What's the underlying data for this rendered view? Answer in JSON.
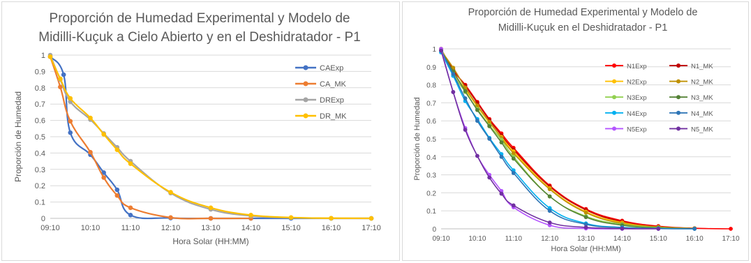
{
  "chart_data": [
    {
      "type": "line",
      "title_lines": [
        "Proporción de Humedad Experimental y Modelo de",
        "Midilli-Kuçuk a Cielo Abierto y en el Deshidratador - P1"
      ],
      "xlabel": "Hora Solar (HH:MM)",
      "ylabel": "Proporción de Humedad",
      "x_unit": "hours",
      "xlim": [
        9.1667,
        17.1667
      ],
      "ylim": [
        0,
        1
      ],
      "x_ticks": [
        {
          "value": 9.1667,
          "label": "09:10"
        },
        {
          "value": 10.1667,
          "label": "10:10"
        },
        {
          "value": 11.1667,
          "label": "11:10"
        },
        {
          "value": 12.1667,
          "label": "12:10"
        },
        {
          "value": 13.1667,
          "label": "13:10"
        },
        {
          "value": 14.1667,
          "label": "14:10"
        },
        {
          "value": 15.1667,
          "label": "15:10"
        },
        {
          "value": 16.1667,
          "label": "16:10"
        },
        {
          "value": 17.1667,
          "label": "17:10"
        }
      ],
      "y_ticks": [
        {
          "value": 0,
          "label": "0"
        },
        {
          "value": 0.1,
          "label": "0.1"
        },
        {
          "value": 0.2,
          "label": "0.2"
        },
        {
          "value": 0.3,
          "label": "0.3"
        },
        {
          "value": 0.4,
          "label": "0.4"
        },
        {
          "value": 0.5,
          "label": "0.5"
        },
        {
          "value": 0.6,
          "label": "0.6"
        },
        {
          "value": 0.7,
          "label": "0.7"
        },
        {
          "value": 0.8,
          "label": "0.8"
        },
        {
          "value": 0.9,
          "label": "0.9"
        },
        {
          "value": 1,
          "label": "1"
        }
      ],
      "grid": "horizontal",
      "legend": "top-right",
      "series": [
        {
          "name": "CAExp",
          "color": "#4472C4",
          "x": [
            9.1667,
            9.5,
            9.6667,
            10.1667,
            10.5,
            10.8333,
            11.1667,
            12.1667,
            13.1667,
            14.1667,
            15.1667,
            16.1667,
            17.1667
          ],
          "y": [
            0.99,
            0.88,
            0.525,
            0.39,
            0.28,
            0.175,
            0.02,
            0.002,
            0.0,
            0.0,
            0.0,
            0.0,
            0.0
          ]
        },
        {
          "name": "CA_MK",
          "color": "#ED7D31",
          "x": [
            9.1667,
            9.4167,
            9.6667,
            10.1667,
            10.5,
            10.8333,
            11.1667,
            12.1667,
            13.1667,
            14.1667
          ],
          "y": [
            0.99,
            0.805,
            0.595,
            0.405,
            0.25,
            0.14,
            0.065,
            0.005,
            0.0,
            0.0
          ]
        },
        {
          "name": "DRExp",
          "color": "#A5A5A5",
          "x": [
            9.1667,
            9.4167,
            9.6667,
            10.1667,
            10.5,
            10.8333,
            11.1667,
            12.1667,
            13.1667,
            14.1667,
            15.1667,
            16.1667,
            17.1667
          ],
          "y": [
            1.0,
            0.85,
            0.715,
            0.605,
            0.52,
            0.435,
            0.35,
            0.155,
            0.055,
            0.015,
            0.004,
            0.0,
            0.0
          ]
        },
        {
          "name": "DR_MK",
          "color": "#FFC000",
          "x": [
            9.1667,
            9.4167,
            9.6667,
            10.1667,
            10.5,
            10.8333,
            11.1667,
            12.1667,
            13.1667,
            14.1667,
            15.1667,
            16.1667,
            17.1667
          ],
          "y": [
            0.99,
            0.855,
            0.735,
            0.615,
            0.515,
            0.42,
            0.335,
            0.16,
            0.065,
            0.02,
            0.005,
            0.001,
            0.0
          ]
        }
      ]
    },
    {
      "type": "line",
      "title_lines": [
        "Proporción de Humedad Experimental y Modelo de",
        "Midilli-Kuçuk en el Deshidratador - P1"
      ],
      "xlabel": "Hora Solar (HH:MM)",
      "ylabel": "Proporción de Humedad",
      "x_unit": "hours",
      "xlim": [
        9.1667,
        17.1667
      ],
      "ylim": [
        0,
        1
      ],
      "x_ticks": [
        {
          "value": 9.1667,
          "label": "09:10"
        },
        {
          "value": 10.1667,
          "label": "10:10"
        },
        {
          "value": 11.1667,
          "label": "11:10"
        },
        {
          "value": 12.1667,
          "label": "12:10"
        },
        {
          "value": 13.1667,
          "label": "13:10"
        },
        {
          "value": 14.1667,
          "label": "14:10"
        },
        {
          "value": 15.1667,
          "label": "15:10"
        },
        {
          "value": 16.1667,
          "label": "16:10"
        },
        {
          "value": 17.1667,
          "label": "17:10"
        }
      ],
      "y_ticks": [
        {
          "value": 0,
          "label": "0"
        },
        {
          "value": 0.1,
          "label": "0.1"
        },
        {
          "value": 0.2,
          "label": "0.2"
        },
        {
          "value": 0.3,
          "label": "0.3"
        },
        {
          "value": 0.4,
          "label": "0.4"
        },
        {
          "value": 0.5,
          "label": "0.5"
        },
        {
          "value": 0.6,
          "label": "0.6"
        },
        {
          "value": 0.7,
          "label": "0.7"
        },
        {
          "value": 0.8,
          "label": "0.8"
        },
        {
          "value": 0.9,
          "label": "0.9"
        },
        {
          "value": 1,
          "label": "1"
        }
      ],
      "grid": "horizontal",
      "legend": "top-right",
      "series": [
        {
          "name": "N1Exp",
          "color": "#FF0000",
          "x": [
            9.1667,
            9.5,
            9.8333,
            10.1667,
            10.5,
            10.8333,
            11.1667,
            12.1667,
            13.1667,
            14.1667,
            15.1667,
            16.1667,
            17.1667
          ],
          "y": [
            1.0,
            0.88,
            0.8,
            0.705,
            0.61,
            0.53,
            0.45,
            0.24,
            0.11,
            0.045,
            0.015,
            0.003,
            0.0
          ]
        },
        {
          "name": "N1_MK",
          "color": "#C00000",
          "x": [
            9.1667,
            9.5,
            9.8333,
            10.1667,
            10.5,
            10.8333,
            11.1667,
            12.1667,
            13.1667,
            14.1667,
            15.1667,
            16.1667
          ],
          "y": [
            0.99,
            0.885,
            0.795,
            0.7,
            0.605,
            0.52,
            0.44,
            0.235,
            0.105,
            0.04,
            0.012,
            0.003
          ]
        },
        {
          "name": "N2Exp",
          "color": "#FFC000",
          "x": [
            9.1667,
            9.5,
            9.8333,
            10.1667,
            10.5,
            10.8333,
            11.1667,
            12.1667,
            13.1667,
            14.1667,
            15.1667,
            16.1667
          ],
          "y": [
            1.0,
            0.87,
            0.775,
            0.68,
            0.59,
            0.51,
            0.43,
            0.225,
            0.095,
            0.035,
            0.01,
            0.002
          ]
        },
        {
          "name": "N2_MK",
          "color": "#BF9000",
          "x": [
            9.1667,
            9.5,
            9.8333,
            10.1667,
            10.5,
            10.8333,
            11.1667,
            12.1667,
            13.1667,
            14.1667,
            15.1667,
            16.1667
          ],
          "y": [
            0.99,
            0.895,
            0.785,
            0.685,
            0.595,
            0.505,
            0.42,
            0.22,
            0.09,
            0.03,
            0.01,
            0.002
          ]
        },
        {
          "name": "N3Exp",
          "color": "#92D050",
          "x": [
            9.1667,
            9.5,
            9.8333,
            10.1667,
            10.5,
            10.8333,
            11.1667,
            12.1667,
            13.1667,
            14.1667,
            15.1667,
            16.1667
          ],
          "y": [
            1.0,
            0.86,
            0.76,
            0.665,
            0.575,
            0.495,
            0.4,
            0.18,
            0.07,
            0.025,
            0.007,
            0.001
          ]
        },
        {
          "name": "N3_MK",
          "color": "#548235",
          "x": [
            9.1667,
            9.5,
            9.8333,
            10.1667,
            10.5,
            10.8333,
            11.1667,
            12.1667,
            13.1667,
            14.1667,
            15.1667,
            16.1667
          ],
          "y": [
            0.99,
            0.875,
            0.765,
            0.66,
            0.57,
            0.48,
            0.39,
            0.18,
            0.065,
            0.02,
            0.005,
            0.001
          ]
        },
        {
          "name": "N4Exp",
          "color": "#00B0F0",
          "x": [
            9.1667,
            9.5,
            9.8333,
            10.1667,
            10.5,
            10.8333,
            11.1667,
            12.1667,
            13.1667,
            14.1667,
            15.1667,
            16.1667
          ],
          "y": [
            0.98,
            0.85,
            0.71,
            0.61,
            0.505,
            0.415,
            0.325,
            0.115,
            0.03,
            0.008,
            0.002,
            0.0
          ]
        },
        {
          "name": "N4_MK",
          "color": "#2E75B6",
          "x": [
            9.1667,
            9.5,
            9.8333,
            10.1667,
            10.5,
            10.8333,
            11.1667,
            12.1667,
            13.1667,
            14.1667,
            15.1667,
            16.1667
          ],
          "y": [
            0.99,
            0.86,
            0.725,
            0.6,
            0.5,
            0.4,
            0.31,
            0.1,
            0.025,
            0.006,
            0.001,
            0.0
          ]
        },
        {
          "name": "N5Exp",
          "color": "#B454FF",
          "x": [
            9.1667,
            9.5,
            9.8333,
            10.1667,
            10.5,
            10.8333,
            11.1667,
            12.1667,
            13.1667,
            14.1667,
            15.1667
          ],
          "y": [
            1.0,
            0.76,
            0.56,
            0.405,
            0.3,
            0.21,
            0.12,
            0.02,
            0.002,
            0.0,
            0.0
          ]
        },
        {
          "name": "N5_MK",
          "color": "#7030A0",
          "x": [
            9.1667,
            9.5,
            9.8333,
            10.1667,
            10.5,
            10.8333,
            11.1667,
            12.1667,
            13.1667,
            14.1667,
            15.1667
          ],
          "y": [
            0.99,
            0.76,
            0.55,
            0.405,
            0.285,
            0.195,
            0.13,
            0.035,
            0.008,
            0.001,
            0.0
          ]
        }
      ]
    }
  ]
}
